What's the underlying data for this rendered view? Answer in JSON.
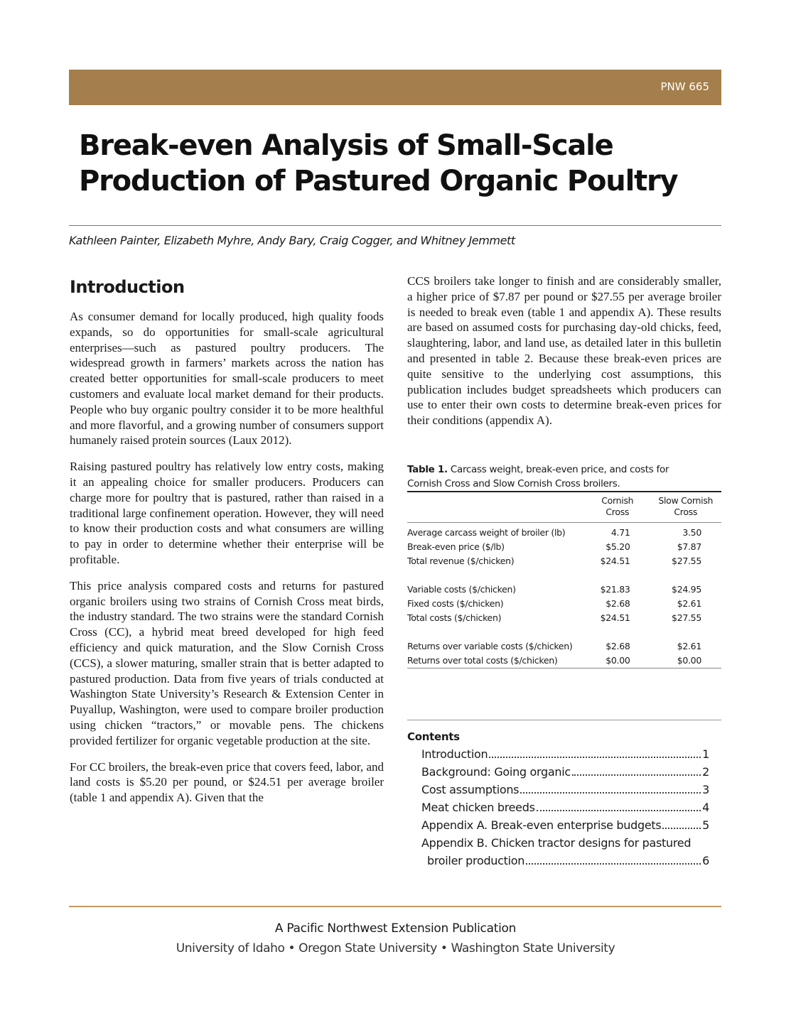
{
  "header": {
    "code": "PNW 665",
    "band_color": "#a47f4c"
  },
  "title_lines": [
    "Break-even Analysis of Small-Scale",
    "Production of Pastured Organic Poultry"
  ],
  "authors": "Kathleen Painter, Elizabeth Myhre, Andy Bary, Craig Cogger, and Whitney Jemmett",
  "intro_heading": "Introduction",
  "left_paragraphs": [
    "As consumer demand for locally produced, high quality foods expands, so do opportunities for small-scale agricultural enterprises—such as pastured poultry producers. The widespread growth in farmers’ markets across the nation has created better opportunities for small-scale producers to meet customers and evaluate local market demand for their products. People who buy organic poultry consider it to be more healthful and more flavorful, and a growing number of consumers support humanely raised protein sources (Laux 2012).",
    "Raising pastured poultry has relatively low entry costs, making it an appealing choice for smaller producers. Producers can charge more for poultry that is pastured, rather than raised in a traditional large confinement operation. However, they will need to know their production costs and what consumers are willing to pay in order to determine whether their enterprise will be profitable.",
    "This price analysis compared costs and returns for pastured organic broilers using two strains of Cornish Cross meat birds, the industry standard. The two strains were the standard Cornish Cross (CC), a hybrid meat breed developed for high feed efficiency and quick maturation, and the Slow Cornish Cross (CCS), a slower maturing, smaller strain that is better adapted to pastured production. Data from five years of trials conducted at Washington State University’s Research & Extension Center in Puyallup, Washington, were used to compare broiler production using chicken “tractors,” or movable pens. The chickens provided fertilizer for organic vegetable production at the site.",
    "For CC broilers, the break-even price that covers feed, labor, and land costs is $5.20 per pound, or $24.51 per average broiler (table 1 and appendix A). Given that the"
  ],
  "right_paragraph": "CCS broilers take longer to finish and are considerably smaller, a higher price of $7.87 per pound or $27.55 per average broiler is needed to break even (table 1 and appendix A). These results are based on assumed costs for purchasing day-old chicks, feed, slaughtering, labor, and land use, as detailed later in this bulletin and presented in table 2. Because these break-even prices are quite sensitive to the underlying cost assumptions, this publication includes budget spreadsheets which producers can use to enter their own costs to determine break-even prices for their conditions (appendix A).",
  "table1": {
    "caption_label": "Table 1.",
    "caption_text": " Carcass weight, break-even price, and costs for Cornish Cross and Slow Cornish Cross broilers.",
    "col1": [
      "Cornish",
      "Cross"
    ],
    "col2": [
      "Slow Cornish",
      "Cross"
    ],
    "rows": [
      {
        "label": "Average carcass weight of broiler (lb)",
        "cc": "4.71",
        "scc": "3.50"
      },
      {
        "label": "Break-even price ($/lb)",
        "cc": "$5.20",
        "scc": "$7.87"
      },
      {
        "label": "Total revenue ($/chicken)",
        "cc": "$24.51",
        "scc": "$27.55"
      },
      {
        "label": "Variable costs ($/chicken)",
        "cc": "$21.83",
        "scc": "$24.95"
      },
      {
        "label": "Fixed costs ($/chicken)",
        "cc": "$2.68",
        "scc": "$2.61"
      },
      {
        "label": "Total costs ($/chicken)",
        "cc": "$24.51",
        "scc": "$27.55"
      },
      {
        "label": "Returns over variable costs ($/chicken)",
        "cc": "$2.68",
        "scc": "$2.61"
      },
      {
        "label": "Returns over total costs ($/chicken)",
        "cc": "$0.00",
        "scc": "$0.00"
      }
    ]
  },
  "contents": {
    "heading": "Contents",
    "items": [
      {
        "label": "Introduction",
        "page": "1"
      },
      {
        "label": "Background: Going organic",
        "page": "2"
      },
      {
        "label": "Cost assumptions",
        "page": "3"
      },
      {
        "label": "Meat chicken breeds",
        "page": "4"
      },
      {
        "label": "Appendix A. Break-even enterprise budgets",
        "page": "5"
      },
      {
        "label": "Appendix B. Chicken tractor designs for pastured",
        "page": ""
      },
      {
        "label": "broiler production",
        "page": "6"
      }
    ]
  },
  "footer": {
    "line1": "A Pacific Northwest Extension Publication",
    "line2": "University of Idaho • Oregon State University • Washington State University"
  }
}
